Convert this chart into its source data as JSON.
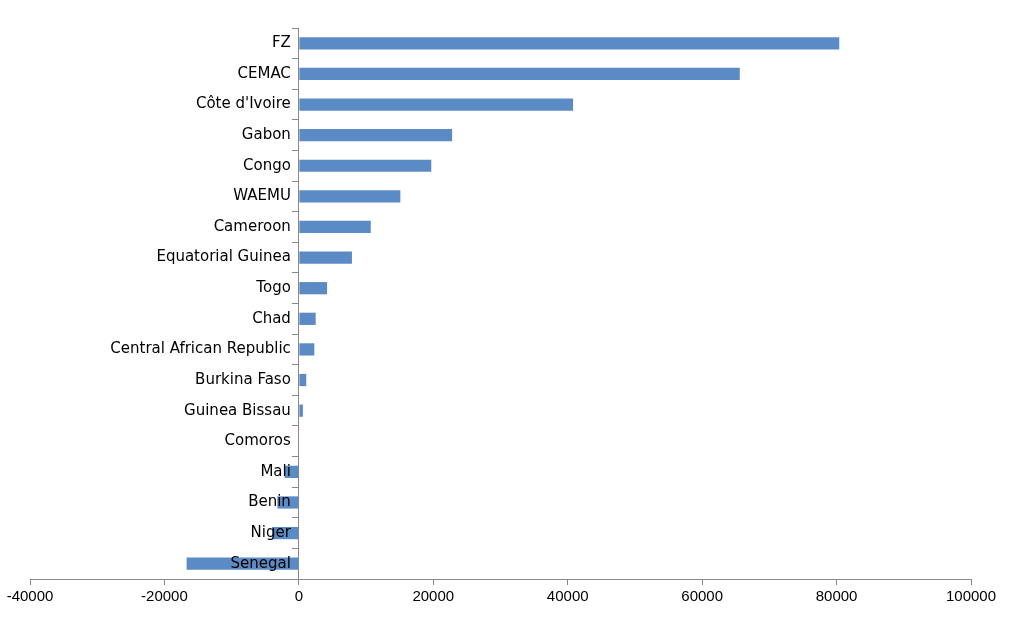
{
  "chart_data": {
    "type": "bar",
    "orientation": "horizontal",
    "categories": [
      "FZ",
      "CEMAC",
      "Côte d'Ivoire",
      "Gabon",
      "Congo",
      "WAEMU",
      "Cameroon",
      "Equatorial Guinea",
      "Togo",
      "Chad",
      "Central African Republic",
      "Burkina Faso",
      "Guinea Bissau",
      "Comoros",
      "Mali",
      "Benin",
      "Niger",
      "Senegal"
    ],
    "values": [
      80400,
      65600,
      40800,
      22800,
      19700,
      15100,
      10700,
      7900,
      4200,
      2500,
      2300,
      1100,
      600,
      0,
      -2100,
      -3200,
      -4000,
      -16700
    ],
    "color": "#5b8bc5",
    "xlim": [
      -40000,
      100000
    ],
    "xticks": [
      -40000,
      -20000,
      0,
      20000,
      40000,
      60000,
      80000,
      100000
    ],
    "grid": false,
    "legend": false
  }
}
